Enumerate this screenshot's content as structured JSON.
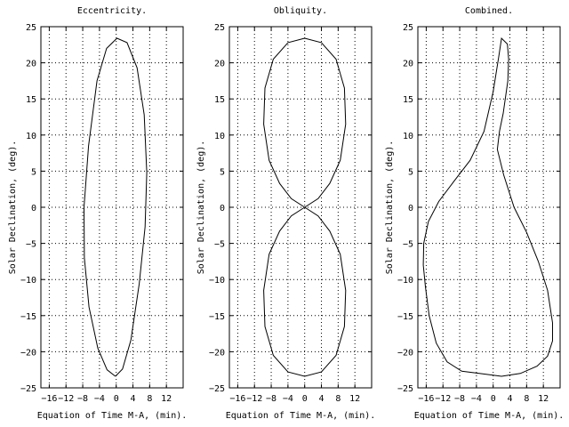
{
  "chart_data": [
    {
      "type": "line",
      "title": "Eccentricity.",
      "xlabel": "Equation of Time M-A, (min).",
      "ylabel": "Solar Declination, (deg).",
      "xlim": [
        -18,
        16
      ],
      "ylim": [
        -25,
        25
      ],
      "xticks": [
        -16,
        -12,
        -8,
        -4,
        0,
        4,
        8,
        12
      ],
      "xtick_labels": [
        "−16",
        "−12",
        "−8",
        "−4",
        "0",
        "4",
        "8",
        "12"
      ],
      "yticks": [
        -25,
        -20,
        -15,
        -10,
        -5,
        0,
        5,
        10,
        15,
        20,
        25
      ],
      "ytick_labels": [
        "−25",
        "−20",
        "−15",
        "−10",
        "−5",
        "0",
        "5",
        "10",
        "15",
        "20",
        "25"
      ],
      "grid": true,
      "series": [
        {
          "x": [
            -0.2,
            1.5,
            3.5,
            5.5,
            6.9,
            7.3,
            6.7,
            5.0,
            2.6,
            0.2,
            -2.3,
            -4.6,
            -6.6,
            -7.7,
            -7.6,
            -6.5,
            -4.4,
            -2.2,
            -0.2
          ],
          "y": [
            -23.4,
            -22.4,
            -18.4,
            -10.6,
            -2.7,
            4.8,
            12.8,
            19.3,
            22.8,
            23.4,
            22.0,
            17.5,
            8.5,
            0.0,
            -7.0,
            -13.8,
            -19.5,
            -22.5,
            -23.4
          ]
        }
      ]
    },
    {
      "type": "line",
      "title": "Obliquity.",
      "xlabel": "Equation of Time M-A, (min).",
      "ylabel": "Solar Declination, (deg).",
      "xlim": [
        -18,
        16
      ],
      "ylim": [
        -25,
        25
      ],
      "xticks": [
        -16,
        -12,
        -8,
        -4,
        0,
        4,
        8,
        12
      ],
      "xtick_labels": [
        "−16",
        "−12",
        "−8",
        "−4",
        "0",
        "4",
        "8",
        "12"
      ],
      "yticks": [
        -25,
        -20,
        -15,
        -10,
        -5,
        0,
        5,
        10,
        15,
        20,
        25
      ],
      "ytick_labels": [
        "−25",
        "−20",
        "−15",
        "−10",
        "−5",
        "0",
        "5",
        "10",
        "15",
        "20",
        "25"
      ],
      "grid": true,
      "series": [
        {
          "x": [
            0.0,
            4.0,
            7.5,
            9.5,
            9.8,
            8.5,
            6.0,
            3.2,
            0.0,
            -3.2,
            -6.0,
            -8.5,
            -9.8,
            -9.5,
            -7.5,
            -4.0,
            0.0,
            4.0,
            7.5,
            9.5,
            9.8,
            8.5,
            6.0,
            3.2,
            0.0,
            -3.2,
            -6.0,
            -8.5,
            -9.8,
            -9.5,
            -7.5,
            -4.0,
            0.0
          ],
          "y": [
            23.4,
            22.8,
            20.5,
            16.5,
            11.5,
            6.5,
            3.3,
            1.2,
            0.0,
            -1.2,
            -3.3,
            -6.5,
            -11.5,
            -16.5,
            -20.5,
            -22.8,
            -23.4,
            -22.8,
            -20.5,
            -16.5,
            -11.5,
            -6.5,
            -3.3,
            -1.2,
            0.0,
            1.2,
            3.3,
            6.5,
            11.5,
            16.5,
            20.5,
            22.8,
            23.4
          ]
        }
      ]
    },
    {
      "type": "line",
      "title": "Combined.",
      "xlabel": "Equation of Time M-A, (min).",
      "ylabel": "Solar Declination, (deg).",
      "xlim": [
        -18,
        16
      ],
      "ylim": [
        -25,
        25
      ],
      "xticks": [
        -16,
        -12,
        -8,
        -4,
        0,
        4,
        8,
        12
      ],
      "xtick_labels": [
        "−16",
        "−12",
        "−8",
        "−4",
        "0",
        "4",
        "8",
        "12"
      ],
      "yticks": [
        -25,
        -20,
        -15,
        -10,
        -5,
        0,
        5,
        10,
        15,
        20,
        25
      ],
      "ytick_labels": [
        "−25",
        "−20",
        "−15",
        "−10",
        "−5",
        "0",
        "5",
        "10",
        "15",
        "20",
        "25"
      ],
      "grid": true,
      "series": [
        {
          "x": [
            -3.3,
            -7.5,
            -11.0,
            -13.6,
            -15.3,
            -16.2,
            -16.7,
            -16.6,
            -15.5,
            -13.0,
            -9.5,
            -5.5,
            -2.2,
            0.0,
            1.3,
            2.0,
            3.4,
            3.7,
            3.5,
            2.4,
            1.5,
            1.0,
            2.5,
            5.0,
            8.0,
            10.8,
            13.0,
            14.2,
            14.2,
            13.0,
            10.5,
            6.5,
            2.0,
            -3.3
          ],
          "y": [
            -23.0,
            -22.7,
            -21.4,
            -18.8,
            -15.0,
            -11.0,
            -8.0,
            -5.0,
            -2.0,
            0.8,
            3.5,
            6.5,
            10.5,
            16.0,
            20.7,
            23.4,
            22.6,
            20.5,
            17.5,
            13.0,
            10.5,
            8.0,
            4.5,
            0.0,
            -3.5,
            -7.5,
            -11.5,
            -16.0,
            -18.5,
            -20.6,
            -22.0,
            -23.0,
            -23.4,
            -23.0
          ]
        }
      ]
    }
  ]
}
